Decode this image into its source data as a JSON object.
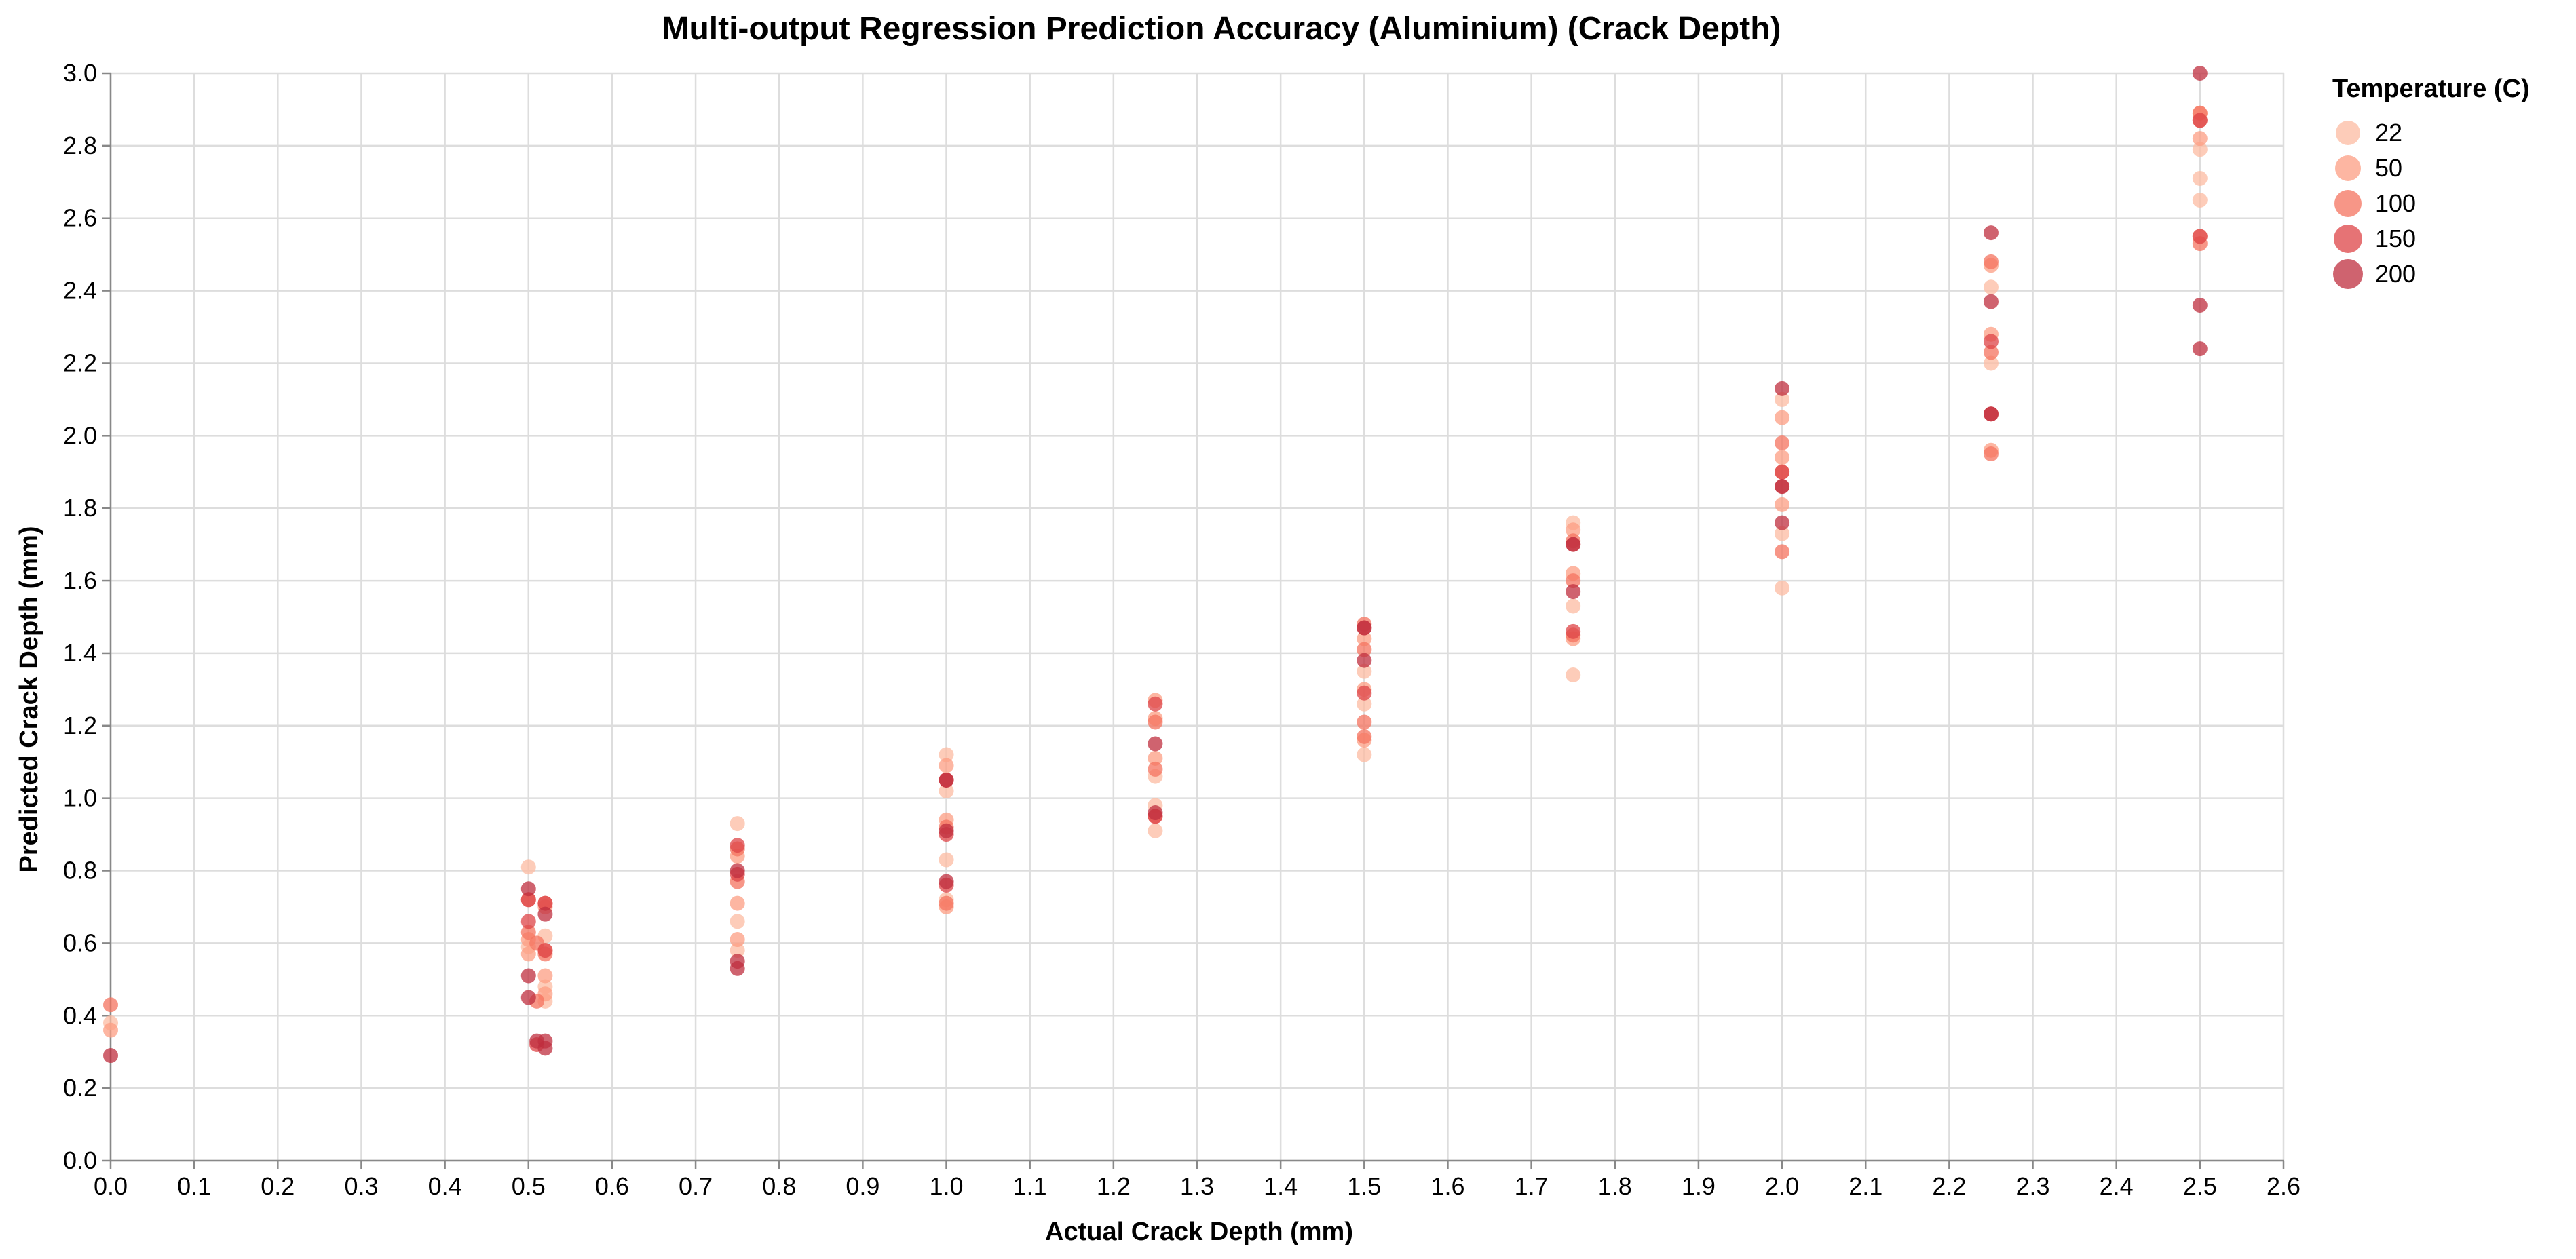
{
  "chart_data": {
    "type": "scatter",
    "title": "Multi-output Regression Prediction Accuracy (Aluminium) (Crack Depth)",
    "xlabel": "Actual Crack Depth (mm)",
    "ylabel": "Predicted Crack Depth (mm)",
    "xlim": [
      0.0,
      2.6
    ],
    "ylim": [
      0.0,
      3.0
    ],
    "x_ticks": [
      "0.0",
      "0.1",
      "0.2",
      "0.3",
      "0.4",
      "0.5",
      "0.6",
      "0.7",
      "0.8",
      "0.9",
      "1.0",
      "1.1",
      "1.2",
      "1.3",
      "1.4",
      "1.5",
      "1.6",
      "1.7",
      "1.8",
      "1.9",
      "2.0",
      "2.1",
      "2.2",
      "2.3",
      "2.4",
      "2.5",
      "2.6"
    ],
    "y_ticks": [
      "0.0",
      "0.2",
      "0.4",
      "0.6",
      "0.8",
      "1.0",
      "1.2",
      "1.4",
      "1.6",
      "1.8",
      "2.0",
      "2.2",
      "2.4",
      "2.6",
      "2.8",
      "3.0"
    ],
    "grid": true,
    "legend": {
      "title": "Temperature (C)",
      "placement": "top-right",
      "entries": [
        {
          "label": "22",
          "color": "#fcbba1"
        },
        {
          "label": "50",
          "color": "#fc9d83"
        },
        {
          "label": "100",
          "color": "#f4735f"
        },
        {
          "label": "150",
          "color": "#de4447"
        },
        {
          "label": "200",
          "color": "#bf2f3f"
        }
      ]
    },
    "series": [
      {
        "temperature": "22",
        "color": "#fcbba1",
        "points": [
          [
            0.0,
            0.38
          ],
          [
            0.5,
            0.81
          ],
          [
            0.5,
            0.59
          ],
          [
            0.52,
            0.48
          ],
          [
            0.52,
            0.44
          ],
          [
            0.52,
            0.62
          ],
          [
            0.75,
            0.93
          ],
          [
            0.75,
            0.66
          ],
          [
            0.75,
            0.58
          ],
          [
            1.0,
            1.12
          ],
          [
            1.0,
            1.02
          ],
          [
            1.0,
            0.83
          ],
          [
            1.0,
            0.72
          ],
          [
            1.25,
            0.98
          ],
          [
            1.25,
            0.91
          ],
          [
            1.25,
            1.06
          ],
          [
            1.5,
            1.12
          ],
          [
            1.5,
            1.35
          ],
          [
            1.5,
            1.26
          ],
          [
            1.75,
            1.34
          ],
          [
            1.75,
            1.53
          ],
          [
            1.75,
            1.76
          ],
          [
            2.0,
            1.58
          ],
          [
            2.0,
            2.1
          ],
          [
            2.0,
            1.73
          ],
          [
            2.25,
            2.06
          ],
          [
            2.25,
            2.41
          ],
          [
            2.25,
            2.2
          ],
          [
            2.5,
            2.71
          ],
          [
            2.5,
            2.65
          ],
          [
            2.5,
            2.79
          ]
        ]
      },
      {
        "temperature": "50",
        "color": "#fc9d83",
        "points": [
          [
            0.0,
            0.36
          ],
          [
            0.5,
            0.61
          ],
          [
            0.5,
            0.57
          ],
          [
            0.52,
            0.58
          ],
          [
            0.52,
            0.51
          ],
          [
            0.52,
            0.46
          ],
          [
            0.52,
            0.7
          ],
          [
            0.75,
            0.84
          ],
          [
            0.75,
            0.71
          ],
          [
            0.75,
            0.61
          ],
          [
            1.0,
            1.09
          ],
          [
            1.0,
            0.94
          ],
          [
            1.0,
            0.7
          ],
          [
            1.25,
            1.11
          ],
          [
            1.25,
            1.22
          ],
          [
            1.25,
            1.27
          ],
          [
            1.5,
            1.44
          ],
          [
            1.5,
            1.3
          ],
          [
            1.5,
            1.16
          ],
          [
            1.75,
            1.62
          ],
          [
            1.75,
            1.74
          ],
          [
            1.75,
            1.44
          ],
          [
            2.0,
            1.94
          ],
          [
            2.0,
            2.05
          ],
          [
            2.0,
            1.81
          ],
          [
            2.25,
            2.28
          ],
          [
            2.25,
            2.47
          ],
          [
            2.25,
            1.96
          ],
          [
            2.5,
            2.82
          ],
          [
            2.5,
            2.89
          ],
          [
            2.5,
            2.55
          ]
        ]
      },
      {
        "temperature": "100",
        "color": "#f4735f",
        "points": [
          [
            0.0,
            0.43
          ],
          [
            0.5,
            0.63
          ],
          [
            0.5,
            0.72
          ],
          [
            0.51,
            0.6
          ],
          [
            0.52,
            0.57
          ],
          [
            0.52,
            0.71
          ],
          [
            0.51,
            0.44
          ],
          [
            0.75,
            0.86
          ],
          [
            0.75,
            0.77
          ],
          [
            1.0,
            0.92
          ],
          [
            1.0,
            0.71
          ],
          [
            1.0,
            1.05
          ],
          [
            1.25,
            1.21
          ],
          [
            1.25,
            1.08
          ],
          [
            1.25,
            0.95
          ],
          [
            1.5,
            1.48
          ],
          [
            1.5,
            1.21
          ],
          [
            1.5,
            1.17
          ],
          [
            1.5,
            1.41
          ],
          [
            1.75,
            1.6
          ],
          [
            1.75,
            1.71
          ],
          [
            1.75,
            1.45
          ],
          [
            2.0,
            1.98
          ],
          [
            2.0,
            1.9
          ],
          [
            2.0,
            1.68
          ],
          [
            2.25,
            2.23
          ],
          [
            2.25,
            2.48
          ],
          [
            2.25,
            1.95
          ],
          [
            2.5,
            2.87
          ],
          [
            2.5,
            2.53
          ],
          [
            2.5,
            2.89
          ]
        ]
      },
      {
        "temperature": "150",
        "color": "#de4447",
        "points": [
          [
            0.5,
            0.72
          ],
          [
            0.5,
            0.66
          ],
          [
            0.52,
            0.58
          ],
          [
            0.52,
            0.71
          ],
          [
            0.51,
            0.32
          ],
          [
            0.75,
            0.87
          ],
          [
            0.75,
            0.79
          ],
          [
            1.0,
            0.9
          ],
          [
            1.0,
            1.05
          ],
          [
            1.0,
            0.76
          ],
          [
            1.25,
            1.26
          ],
          [
            1.25,
            0.95
          ],
          [
            1.5,
            1.47
          ],
          [
            1.5,
            1.29
          ],
          [
            1.75,
            1.7
          ],
          [
            1.75,
            1.46
          ],
          [
            2.0,
            1.9
          ],
          [
            2.0,
            1.86
          ],
          [
            2.25,
            2.26
          ],
          [
            2.25,
            2.06
          ],
          [
            2.5,
            2.87
          ],
          [
            2.5,
            2.55
          ]
        ]
      },
      {
        "temperature": "200",
        "color": "#bf2f3f",
        "points": [
          [
            0.0,
            0.29
          ],
          [
            0.5,
            0.75
          ],
          [
            0.5,
            0.51
          ],
          [
            0.5,
            0.45
          ],
          [
            0.52,
            0.68
          ],
          [
            0.52,
            0.33
          ],
          [
            0.52,
            0.31
          ],
          [
            0.51,
            0.33
          ],
          [
            0.75,
            0.8
          ],
          [
            0.75,
            0.55
          ],
          [
            0.75,
            0.53
          ],
          [
            1.0,
            0.91
          ],
          [
            1.0,
            0.77
          ],
          [
            1.0,
            1.05
          ],
          [
            1.25,
            1.15
          ],
          [
            1.25,
            0.96
          ],
          [
            1.5,
            1.38
          ],
          [
            1.5,
            1.47
          ],
          [
            1.75,
            1.7
          ],
          [
            1.75,
            1.57
          ],
          [
            2.0,
            2.13
          ],
          [
            2.0,
            1.86
          ],
          [
            2.0,
            1.76
          ],
          [
            2.25,
            2.56
          ],
          [
            2.25,
            2.37
          ],
          [
            2.25,
            2.06
          ],
          [
            2.5,
            3.0
          ],
          [
            2.5,
            2.36
          ],
          [
            2.5,
            2.24
          ]
        ]
      }
    ]
  }
}
